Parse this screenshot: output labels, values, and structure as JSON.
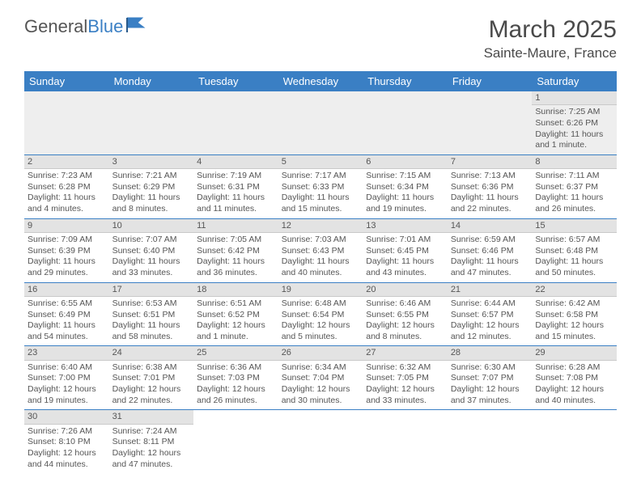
{
  "logo": {
    "text_main": "General",
    "text_accent": "Blue"
  },
  "title": "March 2025",
  "location": "Sainte-Maure, France",
  "colors": {
    "header_bg": "#3a7fc4",
    "header_text": "#ffffff",
    "daynum_bg": "#e3e3e3",
    "first_row_bg": "#eeeeee",
    "text": "#4a4a4a",
    "cell_border": "#3a7fc4"
  },
  "weekdays": [
    "Sunday",
    "Monday",
    "Tuesday",
    "Wednesday",
    "Thursday",
    "Friday",
    "Saturday"
  ],
  "weeks": [
    [
      null,
      null,
      null,
      null,
      null,
      null,
      {
        "n": "1",
        "sr": "Sunrise: 7:25 AM",
        "ss": "Sunset: 6:26 PM",
        "dl": "Daylight: 11 hours and 1 minute."
      }
    ],
    [
      {
        "n": "2",
        "sr": "Sunrise: 7:23 AM",
        "ss": "Sunset: 6:28 PM",
        "dl": "Daylight: 11 hours and 4 minutes."
      },
      {
        "n": "3",
        "sr": "Sunrise: 7:21 AM",
        "ss": "Sunset: 6:29 PM",
        "dl": "Daylight: 11 hours and 8 minutes."
      },
      {
        "n": "4",
        "sr": "Sunrise: 7:19 AM",
        "ss": "Sunset: 6:31 PM",
        "dl": "Daylight: 11 hours and 11 minutes."
      },
      {
        "n": "5",
        "sr": "Sunrise: 7:17 AM",
        "ss": "Sunset: 6:33 PM",
        "dl": "Daylight: 11 hours and 15 minutes."
      },
      {
        "n": "6",
        "sr": "Sunrise: 7:15 AM",
        "ss": "Sunset: 6:34 PM",
        "dl": "Daylight: 11 hours and 19 minutes."
      },
      {
        "n": "7",
        "sr": "Sunrise: 7:13 AM",
        "ss": "Sunset: 6:36 PM",
        "dl": "Daylight: 11 hours and 22 minutes."
      },
      {
        "n": "8",
        "sr": "Sunrise: 7:11 AM",
        "ss": "Sunset: 6:37 PM",
        "dl": "Daylight: 11 hours and 26 minutes."
      }
    ],
    [
      {
        "n": "9",
        "sr": "Sunrise: 7:09 AM",
        "ss": "Sunset: 6:39 PM",
        "dl": "Daylight: 11 hours and 29 minutes."
      },
      {
        "n": "10",
        "sr": "Sunrise: 7:07 AM",
        "ss": "Sunset: 6:40 PM",
        "dl": "Daylight: 11 hours and 33 minutes."
      },
      {
        "n": "11",
        "sr": "Sunrise: 7:05 AM",
        "ss": "Sunset: 6:42 PM",
        "dl": "Daylight: 11 hours and 36 minutes."
      },
      {
        "n": "12",
        "sr": "Sunrise: 7:03 AM",
        "ss": "Sunset: 6:43 PM",
        "dl": "Daylight: 11 hours and 40 minutes."
      },
      {
        "n": "13",
        "sr": "Sunrise: 7:01 AM",
        "ss": "Sunset: 6:45 PM",
        "dl": "Daylight: 11 hours and 43 minutes."
      },
      {
        "n": "14",
        "sr": "Sunrise: 6:59 AM",
        "ss": "Sunset: 6:46 PM",
        "dl": "Daylight: 11 hours and 47 minutes."
      },
      {
        "n": "15",
        "sr": "Sunrise: 6:57 AM",
        "ss": "Sunset: 6:48 PM",
        "dl": "Daylight: 11 hours and 50 minutes."
      }
    ],
    [
      {
        "n": "16",
        "sr": "Sunrise: 6:55 AM",
        "ss": "Sunset: 6:49 PM",
        "dl": "Daylight: 11 hours and 54 minutes."
      },
      {
        "n": "17",
        "sr": "Sunrise: 6:53 AM",
        "ss": "Sunset: 6:51 PM",
        "dl": "Daylight: 11 hours and 58 minutes."
      },
      {
        "n": "18",
        "sr": "Sunrise: 6:51 AM",
        "ss": "Sunset: 6:52 PM",
        "dl": "Daylight: 12 hours and 1 minute."
      },
      {
        "n": "19",
        "sr": "Sunrise: 6:48 AM",
        "ss": "Sunset: 6:54 PM",
        "dl": "Daylight: 12 hours and 5 minutes."
      },
      {
        "n": "20",
        "sr": "Sunrise: 6:46 AM",
        "ss": "Sunset: 6:55 PM",
        "dl": "Daylight: 12 hours and 8 minutes."
      },
      {
        "n": "21",
        "sr": "Sunrise: 6:44 AM",
        "ss": "Sunset: 6:57 PM",
        "dl": "Daylight: 12 hours and 12 minutes."
      },
      {
        "n": "22",
        "sr": "Sunrise: 6:42 AM",
        "ss": "Sunset: 6:58 PM",
        "dl": "Daylight: 12 hours and 15 minutes."
      }
    ],
    [
      {
        "n": "23",
        "sr": "Sunrise: 6:40 AM",
        "ss": "Sunset: 7:00 PM",
        "dl": "Daylight: 12 hours and 19 minutes."
      },
      {
        "n": "24",
        "sr": "Sunrise: 6:38 AM",
        "ss": "Sunset: 7:01 PM",
        "dl": "Daylight: 12 hours and 22 minutes."
      },
      {
        "n": "25",
        "sr": "Sunrise: 6:36 AM",
        "ss": "Sunset: 7:03 PM",
        "dl": "Daylight: 12 hours and 26 minutes."
      },
      {
        "n": "26",
        "sr": "Sunrise: 6:34 AM",
        "ss": "Sunset: 7:04 PM",
        "dl": "Daylight: 12 hours and 30 minutes."
      },
      {
        "n": "27",
        "sr": "Sunrise: 6:32 AM",
        "ss": "Sunset: 7:05 PM",
        "dl": "Daylight: 12 hours and 33 minutes."
      },
      {
        "n": "28",
        "sr": "Sunrise: 6:30 AM",
        "ss": "Sunset: 7:07 PM",
        "dl": "Daylight: 12 hours and 37 minutes."
      },
      {
        "n": "29",
        "sr": "Sunrise: 6:28 AM",
        "ss": "Sunset: 7:08 PM",
        "dl": "Daylight: 12 hours and 40 minutes."
      }
    ],
    [
      {
        "n": "30",
        "sr": "Sunrise: 7:26 AM",
        "ss": "Sunset: 8:10 PM",
        "dl": "Daylight: 12 hours and 44 minutes."
      },
      {
        "n": "31",
        "sr": "Sunrise: 7:24 AM",
        "ss": "Sunset: 8:11 PM",
        "dl": "Daylight: 12 hours and 47 minutes."
      },
      null,
      null,
      null,
      null,
      null
    ]
  ]
}
